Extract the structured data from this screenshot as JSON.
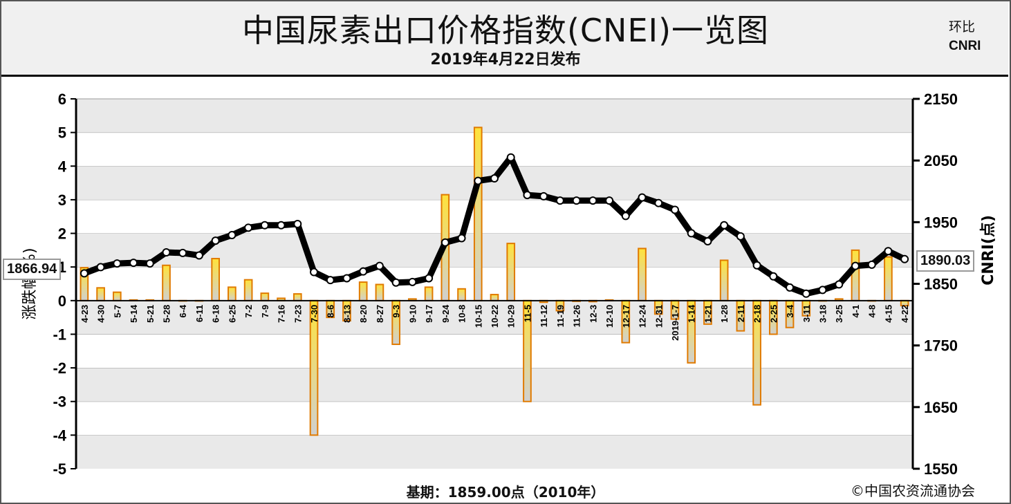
{
  "title": "中国尿素出口价格指数(CNEI)一览图",
  "subtitle": "2019年4月22日发布",
  "legend": {
    "bar_label": "环比",
    "line_label": "CNRI"
  },
  "colors": {
    "bar_fill_top": "#ffe23b",
    "bar_fill_bottom": "#d0d0d0",
    "bar_border": "#e07a00",
    "line": "#000000",
    "grid_band": "#e9e9e9"
  },
  "callouts": {
    "left": "1866.94",
    "right": "1890.03"
  },
  "footer": {
    "base_text": "基期：1859.00点（2010年）",
    "copyright": "©中国农资流通协会"
  },
  "chart_data": {
    "type": "bar+line",
    "y_left_label": "涨跌幅(%)",
    "y_right_label": "CNRI(点)",
    "y_left_ticks": [
      "6",
      "5",
      "4",
      "3",
      "2",
      "1",
      "0",
      "-1",
      "-2",
      "-3",
      "-4",
      "-5"
    ],
    "y_right_ticks": [
      "2150",
      "2050",
      "1950",
      "1850",
      "1750",
      "1650",
      "1550"
    ],
    "y_left_range": [
      -5,
      6
    ],
    "y_right_range": [
      1550,
      2150
    ],
    "categories": [
      "4-23",
      "4-30",
      "5-7",
      "5-14",
      "5-21",
      "5-28",
      "6-4",
      "6-11",
      "6-18",
      "6-25",
      "7-2",
      "7-9",
      "7-16",
      "7-23",
      "7-30",
      "8-6",
      "8-13",
      "8-20",
      "8-27",
      "9-3",
      "9-10",
      "9-17",
      "9-24",
      "10-8",
      "10-15",
      "10-22",
      "10-29",
      "11-5",
      "11-12",
      "11-19",
      "11-26",
      "12-3",
      "12-10",
      "12-17",
      "12-24",
      "12-31",
      "2019-1-7",
      "1-14",
      "1-21",
      "1-28",
      "2-11",
      "2-18",
      "2-25",
      "3-4",
      "3-11",
      "3-18",
      "3-25",
      "4-1",
      "4-8",
      "4-15",
      "4-22"
    ],
    "series": [
      {
        "name": "环比",
        "axis": "left",
        "type": "bar",
        "values": [
          0.98,
          0.38,
          0.25,
          0.02,
          0.02,
          1.05,
          0.0,
          0.0,
          1.25,
          0.4,
          0.62,
          0.22,
          0.07,
          0.2,
          -4.0,
          -0.5,
          -0.6,
          0.55,
          0.48,
          -1.3,
          0.05,
          0.4,
          3.15,
          0.35,
          5.15,
          0.18,
          1.7,
          -3.0,
          -0.05,
          -0.3,
          -0.02,
          -0.03,
          0.02,
          -1.25,
          1.55,
          -0.4,
          -0.55,
          -1.85,
          -0.7,
          1.2,
          -0.9,
          -3.1,
          -1.0,
          -0.8,
          -0.45,
          0.0,
          0.05,
          1.5,
          0.0,
          1.3,
          -0.15
        ]
      },
      {
        "name": "CNRI",
        "axis": "right",
        "type": "line",
        "values": [
          1866.94,
          1877,
          1883,
          1884,
          1883,
          1901,
          1900,
          1896,
          1920,
          1929,
          1941,
          1945,
          1945,
          1947,
          1869,
          1856,
          1859,
          1870,
          1879,
          1852,
          1853,
          1859,
          1917,
          1924,
          2017,
          2021,
          2055,
          1994,
          1992,
          1985,
          1985,
          1985,
          1985,
          1960,
          1990,
          1981,
          1970,
          1932,
          1919,
          1945,
          1927,
          1880,
          1862,
          1844,
          1834,
          1840,
          1849,
          1879,
          1881,
          1903,
          1890.03
        ]
      }
    ],
    "grid": true,
    "legend_position": "top-right"
  }
}
